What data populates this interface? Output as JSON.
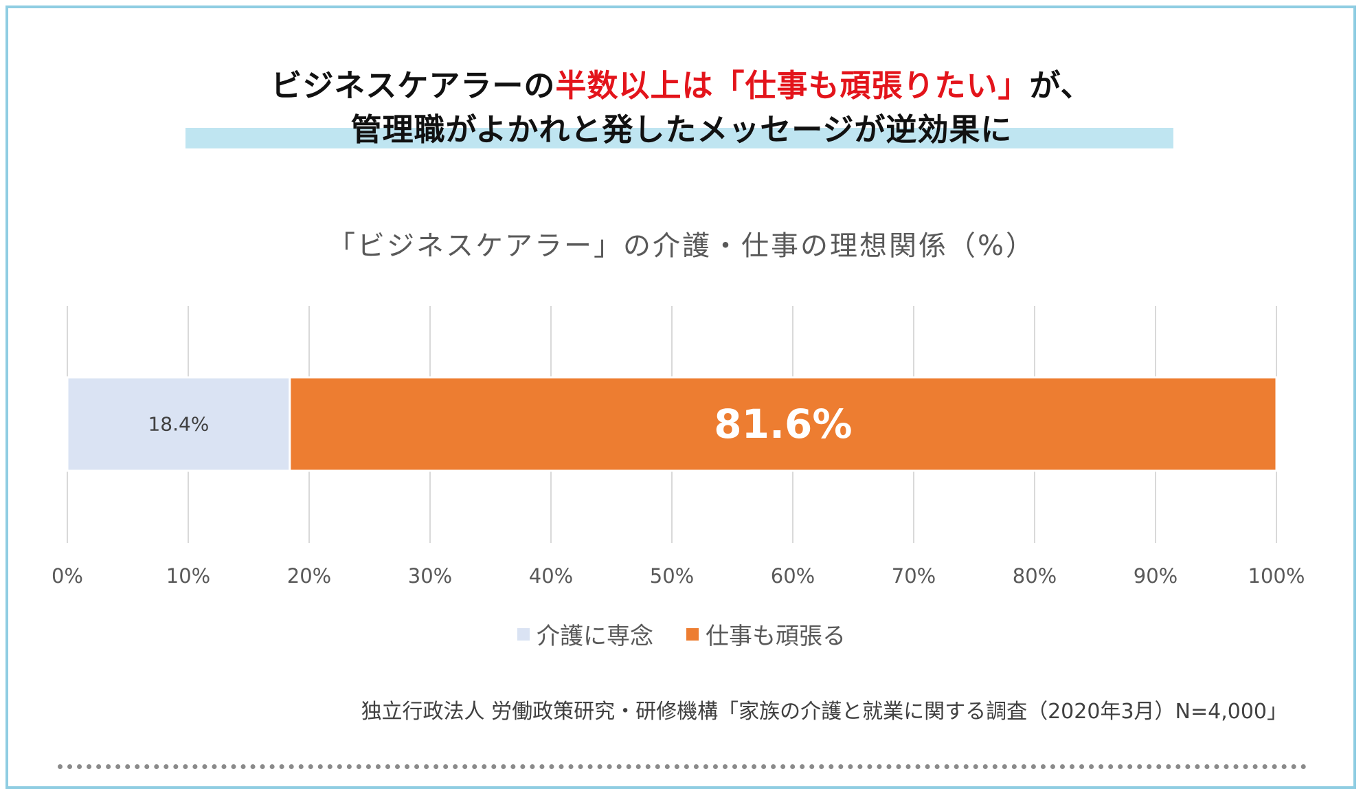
{
  "headline": {
    "line1_part1": "ビジネスケアラーの",
    "line1_highlight": "半数以上は「仕事も頑張りたい」",
    "line1_part2": "が、",
    "line2": "管理職がよかれと発したメッセージが逆効果に"
  },
  "colors": {
    "frame": "#8fcde2",
    "highlight_text": "#e3141b",
    "underline_band": "#bfe5f1",
    "series_care": "#dae3f3",
    "series_work": "#ed7d31"
  },
  "chart_data": {
    "type": "bar",
    "orientation": "horizontal",
    "stacked": true,
    "title": "「ビジネスケアラー」の介護・仕事の理想関係（%）",
    "categories": [
      ""
    ],
    "series": [
      {
        "name": "介護に専念",
        "values": [
          18.4
        ],
        "label": "18.4%",
        "color": "#dae3f3"
      },
      {
        "name": "仕事も頑張る",
        "values": [
          81.6
        ],
        "label": "81.6%",
        "color": "#ed7d31"
      }
    ],
    "xlim": [
      0,
      100
    ],
    "xticks": [
      0,
      10,
      20,
      30,
      40,
      50,
      60,
      70,
      80,
      90,
      100
    ],
    "xtick_labels": [
      "0%",
      "10%",
      "20%",
      "30%",
      "40%",
      "50%",
      "60%",
      "70%",
      "80%",
      "90%",
      "100%"
    ],
    "grid": true,
    "legend_position": "bottom"
  },
  "source": "独立行政法人 労働政策研究・研修機構「家族の介護と就業に関する調査（2020年3月）N=4,000」"
}
